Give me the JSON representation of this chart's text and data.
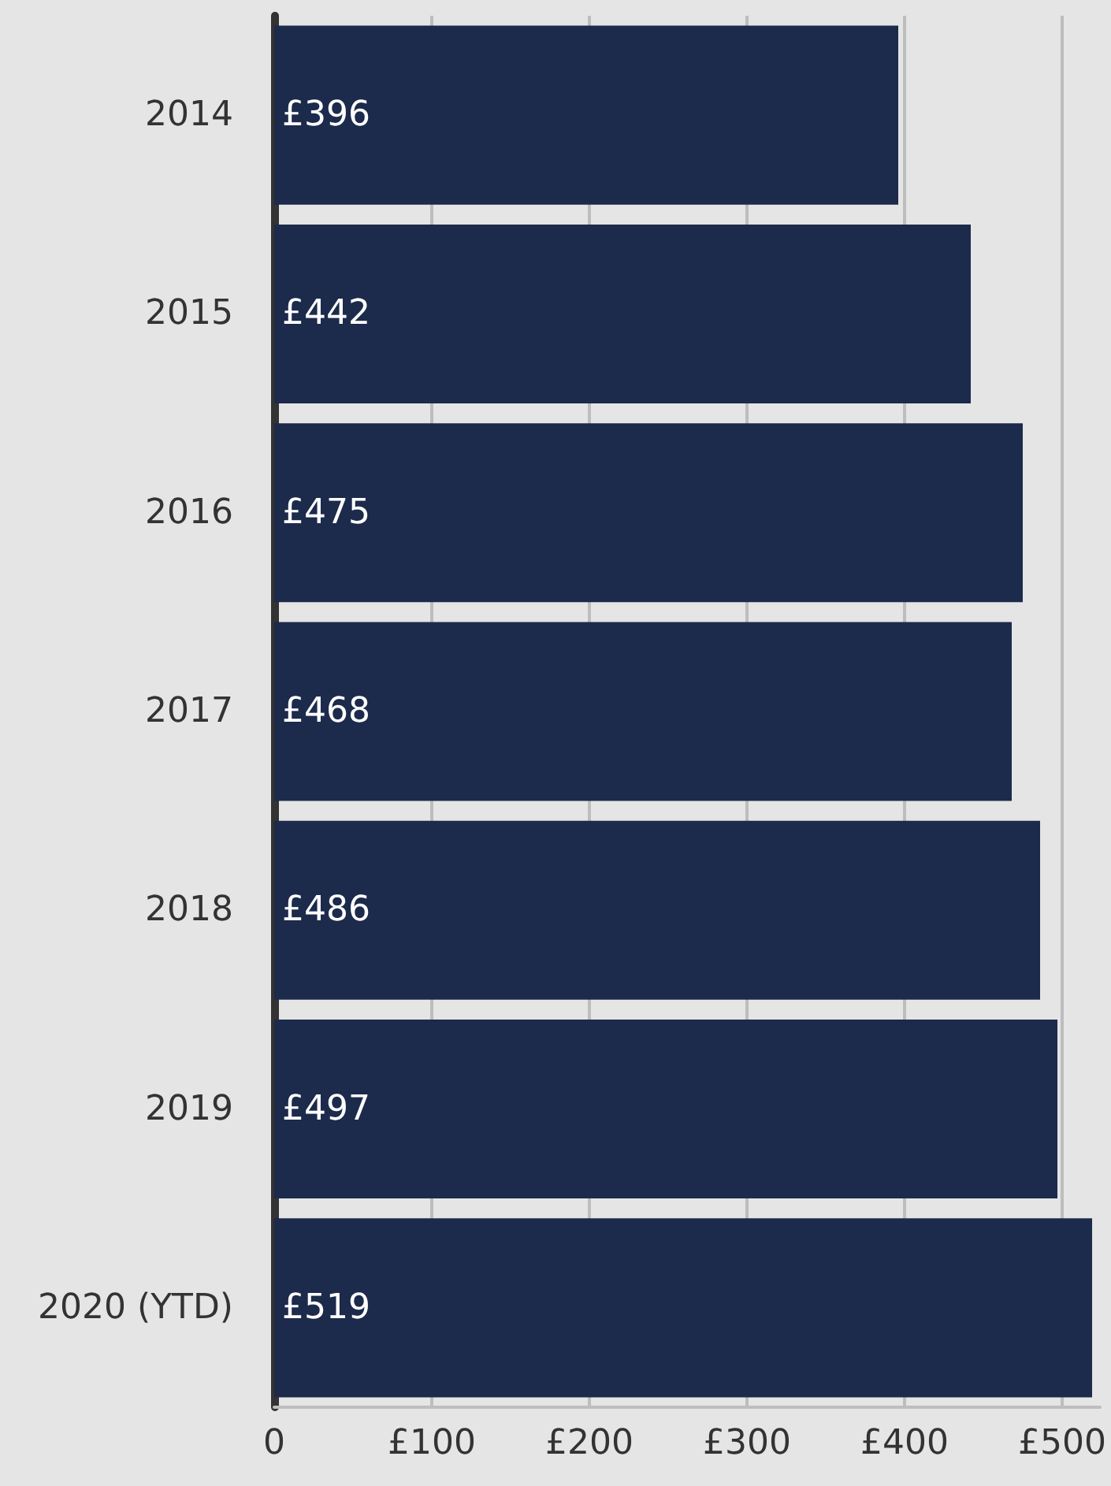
{
  "chart_data": {
    "type": "bar",
    "orientation": "horizontal",
    "categories": [
      "2014",
      "2015",
      "2016",
      "2017",
      "2018",
      "2019",
      "2020 (YTD)"
    ],
    "values": [
      396,
      442,
      475,
      468,
      486,
      497,
      519
    ],
    "value_labels": [
      "£396",
      "£442",
      "£475",
      "£468",
      "£486",
      "£497",
      "£519"
    ],
    "color": "#1c2a4b",
    "xlim": [
      0,
      524
    ],
    "xticks": [
      {
        "value": 0,
        "label": "0"
      },
      {
        "value": 100,
        "label": "£100"
      },
      {
        "value": 200,
        "label": "£200"
      },
      {
        "value": 300,
        "label": "£300"
      },
      {
        "value": 400,
        "label": "£400"
      },
      {
        "value": 500,
        "label": "£500"
      }
    ],
    "grid": "x"
  }
}
